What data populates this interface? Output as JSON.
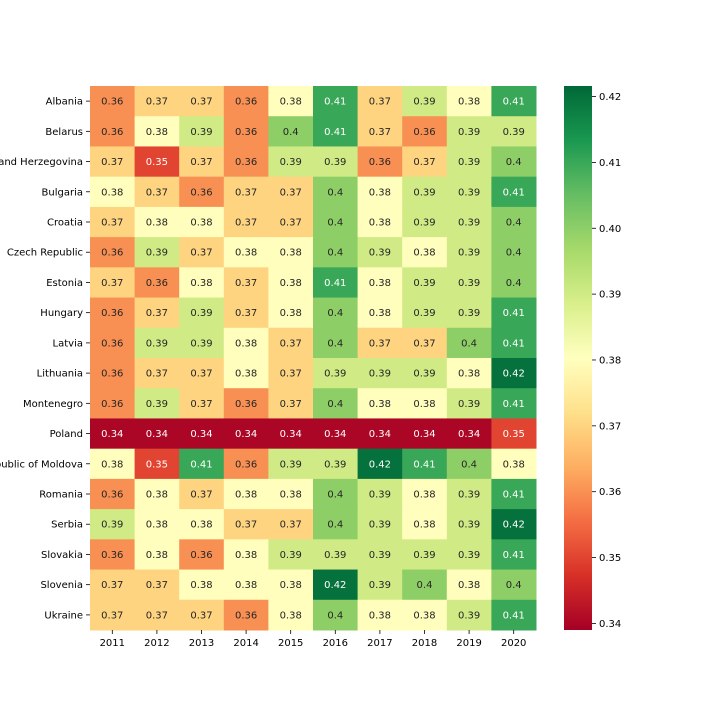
{
  "chart_data": {
    "type": "heatmap",
    "title": "",
    "xlabel": "",
    "ylabel": "",
    "colormap": "RdYlGn",
    "x": [
      "2011",
      "2012",
      "2013",
      "2014",
      "2015",
      "2016",
      "2017",
      "2018",
      "2019",
      "2020"
    ],
    "y": [
      "Albania",
      "Belarus",
      "and Herzegovina",
      "Bulgaria",
      "Croatia",
      "Czech Republic",
      "Estonia",
      "Hungary",
      "Latvia",
      "Lithuania",
      "Montenegro",
      "Poland",
      "epublic of Moldova",
      "Romania",
      "Serbia",
      "Slovakia",
      "Slovenia",
      "Ukraine"
    ],
    "values": [
      [
        0.36,
        0.37,
        0.37,
        0.36,
        0.38,
        0.41,
        0.37,
        0.39,
        0.38,
        0.41
      ],
      [
        0.36,
        0.38,
        0.39,
        0.36,
        0.4,
        0.41,
        0.37,
        0.36,
        0.39,
        0.39
      ],
      [
        0.37,
        0.35,
        0.37,
        0.36,
        0.39,
        0.39,
        0.36,
        0.37,
        0.39,
        0.4
      ],
      [
        0.38,
        0.37,
        0.36,
        0.37,
        0.37,
        0.4,
        0.38,
        0.39,
        0.39,
        0.41
      ],
      [
        0.37,
        0.38,
        0.38,
        0.37,
        0.37,
        0.4,
        0.38,
        0.39,
        0.39,
        0.4
      ],
      [
        0.36,
        0.39,
        0.37,
        0.38,
        0.38,
        0.4,
        0.39,
        0.38,
        0.39,
        0.4
      ],
      [
        0.37,
        0.36,
        0.38,
        0.37,
        0.38,
        0.41,
        0.38,
        0.39,
        0.39,
        0.4
      ],
      [
        0.36,
        0.37,
        0.39,
        0.37,
        0.38,
        0.4,
        0.38,
        0.39,
        0.39,
        0.41
      ],
      [
        0.36,
        0.39,
        0.39,
        0.38,
        0.37,
        0.4,
        0.37,
        0.37,
        0.4,
        0.41
      ],
      [
        0.36,
        0.37,
        0.37,
        0.38,
        0.37,
        0.39,
        0.39,
        0.39,
        0.38,
        0.42
      ],
      [
        0.36,
        0.39,
        0.37,
        0.36,
        0.37,
        0.4,
        0.38,
        0.38,
        0.39,
        0.41
      ],
      [
        0.34,
        0.34,
        0.34,
        0.34,
        0.34,
        0.34,
        0.34,
        0.34,
        0.34,
        0.35
      ],
      [
        0.38,
        0.35,
        0.41,
        0.36,
        0.39,
        0.39,
        0.42,
        0.41,
        0.4,
        0.38
      ],
      [
        0.36,
        0.38,
        0.37,
        0.38,
        0.38,
        0.4,
        0.39,
        0.38,
        0.39,
        0.41
      ],
      [
        0.39,
        0.38,
        0.38,
        0.37,
        0.37,
        0.4,
        0.39,
        0.38,
        0.39,
        0.42
      ],
      [
        0.36,
        0.38,
        0.36,
        0.38,
        0.39,
        0.39,
        0.39,
        0.39,
        0.39,
        0.41
      ],
      [
        0.37,
        0.37,
        0.38,
        0.38,
        0.38,
        0.42,
        0.39,
        0.4,
        0.38,
        0.4
      ],
      [
        0.37,
        0.37,
        0.37,
        0.36,
        0.38,
        0.4,
        0.38,
        0.38,
        0.39,
        0.41
      ]
    ],
    "colorbar": {
      "vmin": 0.339,
      "vmax": 0.4216,
      "ticks": [
        "0.34",
        "0.35",
        "0.36",
        "0.37",
        "0.38",
        "0.39",
        "0.40",
        "0.41",
        "0.42"
      ]
    },
    "grid": false,
    "legend": "colorbar-right"
  }
}
